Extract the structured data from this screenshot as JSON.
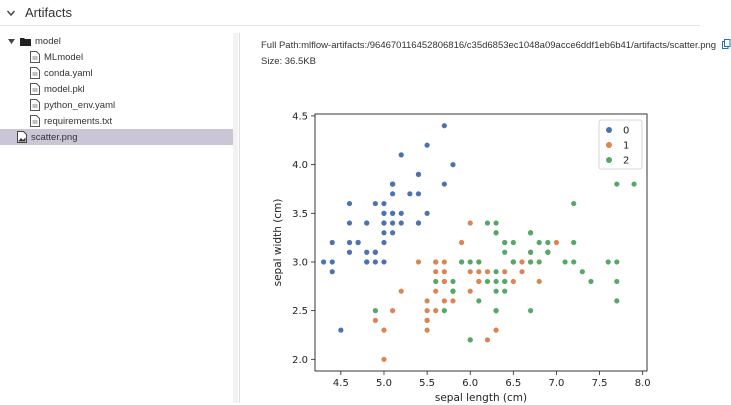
{
  "header": {
    "title": "Artifacts"
  },
  "tree": {
    "folder": "model",
    "files": [
      "MLmodel",
      "conda.yaml",
      "model.pkl",
      "python_env.yaml",
      "requirements.txt"
    ],
    "selected_file": "scatter.png"
  },
  "detail": {
    "full_path": "Full Path:mlflow-artifacts:/964670116452806816/c35d6853ec1048a09acce6ddf1eb6b41/artifacts/scatter.png",
    "size": "Size: 36.5KB"
  },
  "chart_data": {
    "type": "scatter",
    "xlabel": "sepal length (cm)",
    "ylabel": "sepal width (cm)",
    "xlim": [
      4.2,
      8.05
    ],
    "ylim": [
      1.88,
      4.52
    ],
    "xticks": [
      "4.5",
      "5.0",
      "5.5",
      "6.0",
      "6.5",
      "7.0",
      "7.5",
      "8.0"
    ],
    "yticks": [
      "2.0",
      "2.5",
      "3.0",
      "3.5",
      "4.0",
      "4.5"
    ],
    "legend": {
      "placement": "top-right"
    },
    "series": [
      {
        "name": "0",
        "color": "#4c72b0",
        "points": [
          [
            5.1,
            3.5
          ],
          [
            4.9,
            3.0
          ],
          [
            4.7,
            3.2
          ],
          [
            4.6,
            3.1
          ],
          [
            5.0,
            3.6
          ],
          [
            5.4,
            3.9
          ],
          [
            4.6,
            3.4
          ],
          [
            5.0,
            3.4
          ],
          [
            4.4,
            2.9
          ],
          [
            4.9,
            3.1
          ],
          [
            5.4,
            3.7
          ],
          [
            4.8,
            3.4
          ],
          [
            4.8,
            3.0
          ],
          [
            4.3,
            3.0
          ],
          [
            5.8,
            4.0
          ],
          [
            5.7,
            4.4
          ],
          [
            5.4,
            3.9
          ],
          [
            5.1,
            3.5
          ],
          [
            5.7,
            3.8
          ],
          [
            5.1,
            3.8
          ],
          [
            5.4,
            3.4
          ],
          [
            5.1,
            3.7
          ],
          [
            4.6,
            3.6
          ],
          [
            5.1,
            3.3
          ],
          [
            4.8,
            3.4
          ],
          [
            5.0,
            3.0
          ],
          [
            5.0,
            3.4
          ],
          [
            5.2,
            3.5
          ],
          [
            5.2,
            3.4
          ],
          [
            4.7,
            3.2
          ],
          [
            4.8,
            3.1
          ],
          [
            5.4,
            3.4
          ],
          [
            5.2,
            4.1
          ],
          [
            5.5,
            4.2
          ],
          [
            4.9,
            3.1
          ],
          [
            5.0,
            3.2
          ],
          [
            5.5,
            3.5
          ],
          [
            4.9,
            3.6
          ],
          [
            4.4,
            3.0
          ],
          [
            5.1,
            3.4
          ],
          [
            5.0,
            3.5
          ],
          [
            4.5,
            2.3
          ],
          [
            4.4,
            3.2
          ],
          [
            5.0,
            3.5
          ],
          [
            5.1,
            3.8
          ],
          [
            4.8,
            3.0
          ],
          [
            5.1,
            3.8
          ],
          [
            4.6,
            3.2
          ],
          [
            5.3,
            3.7
          ],
          [
            5.0,
            3.3
          ]
        ]
      },
      {
        "name": "1",
        "color": "#dd8452",
        "points": [
          [
            7.0,
            3.2
          ],
          [
            6.4,
            3.2
          ],
          [
            6.9,
            3.1
          ],
          [
            5.5,
            2.3
          ],
          [
            6.5,
            2.8
          ],
          [
            5.7,
            2.8
          ],
          [
            6.3,
            3.3
          ],
          [
            4.9,
            2.4
          ],
          [
            6.6,
            2.9
          ],
          [
            5.2,
            2.7
          ],
          [
            5.0,
            2.0
          ],
          [
            5.9,
            3.0
          ],
          [
            6.0,
            2.2
          ],
          [
            6.1,
            2.9
          ],
          [
            5.6,
            2.9
          ],
          [
            6.7,
            3.1
          ],
          [
            5.6,
            3.0
          ],
          [
            5.8,
            2.7
          ],
          [
            6.2,
            2.2
          ],
          [
            5.6,
            2.5
          ],
          [
            5.9,
            3.2
          ],
          [
            6.1,
            2.8
          ],
          [
            6.3,
            2.5
          ],
          [
            6.1,
            2.8
          ],
          [
            6.4,
            2.9
          ],
          [
            6.6,
            3.0
          ],
          [
            6.8,
            2.8
          ],
          [
            6.7,
            3.0
          ],
          [
            6.0,
            2.9
          ],
          [
            5.7,
            2.6
          ],
          [
            5.5,
            2.4
          ],
          [
            5.5,
            2.4
          ],
          [
            5.8,
            2.7
          ],
          [
            6.0,
            2.7
          ],
          [
            5.4,
            3.0
          ],
          [
            6.0,
            3.4
          ],
          [
            6.7,
            3.1
          ],
          [
            6.3,
            2.3
          ],
          [
            5.6,
            3.0
          ],
          [
            5.5,
            2.5
          ],
          [
            5.5,
            2.6
          ],
          [
            6.1,
            3.0
          ],
          [
            5.8,
            2.6
          ],
          [
            5.0,
            2.3
          ],
          [
            5.6,
            2.7
          ],
          [
            5.7,
            3.0
          ],
          [
            5.7,
            2.9
          ],
          [
            6.2,
            2.9
          ],
          [
            5.1,
            2.5
          ],
          [
            5.7,
            2.8
          ]
        ]
      },
      {
        "name": "2",
        "color": "#55a868",
        "points": [
          [
            6.3,
            3.3
          ],
          [
            5.8,
            2.7
          ],
          [
            7.1,
            3.0
          ],
          [
            6.3,
            2.9
          ],
          [
            6.5,
            3.0
          ],
          [
            7.6,
            3.0
          ],
          [
            4.9,
            2.5
          ],
          [
            7.3,
            2.9
          ],
          [
            6.7,
            2.5
          ],
          [
            7.2,
            3.6
          ],
          [
            6.5,
            3.2
          ],
          [
            6.4,
            2.7
          ],
          [
            6.8,
            3.0
          ],
          [
            5.7,
            2.5
          ],
          [
            5.8,
            2.8
          ],
          [
            6.4,
            3.2
          ],
          [
            6.5,
            3.0
          ],
          [
            7.7,
            3.8
          ],
          [
            7.7,
            2.6
          ],
          [
            6.0,
            2.2
          ],
          [
            6.9,
            3.2
          ],
          [
            5.6,
            2.8
          ],
          [
            7.7,
            2.8
          ],
          [
            6.3,
            2.7
          ],
          [
            6.7,
            3.3
          ],
          [
            7.2,
            3.2
          ],
          [
            6.2,
            2.8
          ],
          [
            6.1,
            3.0
          ],
          [
            6.4,
            2.8
          ],
          [
            7.2,
            3.0
          ],
          [
            7.4,
            2.8
          ],
          [
            7.9,
            3.8
          ],
          [
            6.4,
            2.8
          ],
          [
            6.3,
            2.8
          ],
          [
            6.1,
            2.6
          ],
          [
            7.7,
            3.0
          ],
          [
            6.3,
            3.4
          ],
          [
            6.4,
            3.1
          ],
          [
            6.0,
            3.0
          ],
          [
            6.9,
            3.1
          ],
          [
            6.7,
            3.1
          ],
          [
            6.9,
            3.1
          ],
          [
            5.8,
            2.7
          ],
          [
            6.8,
            3.2
          ],
          [
            6.7,
            3.3
          ],
          [
            6.7,
            3.0
          ],
          [
            6.3,
            2.5
          ],
          [
            6.5,
            3.0
          ],
          [
            6.2,
            3.4
          ],
          [
            5.9,
            3.0
          ]
        ]
      }
    ]
  }
}
